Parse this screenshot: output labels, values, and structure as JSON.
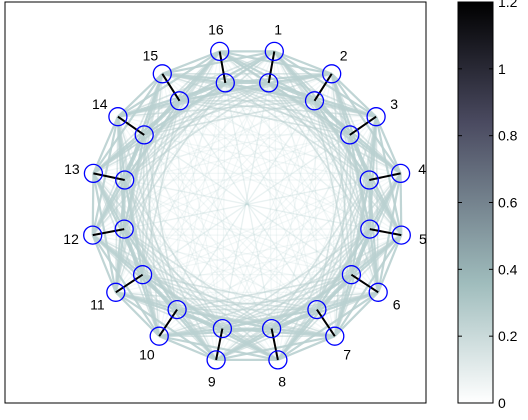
{
  "graph": {
    "nodes": [
      {
        "id": 1,
        "label": "1"
      },
      {
        "id": 2,
        "label": "2"
      },
      {
        "id": 3,
        "label": "3"
      },
      {
        "id": 4,
        "label": "4"
      },
      {
        "id": 5,
        "label": "5"
      },
      {
        "id": 6,
        "label": "6"
      },
      {
        "id": 7,
        "label": "7"
      },
      {
        "id": 8,
        "label": "8"
      },
      {
        "id": 9,
        "label": "9"
      },
      {
        "id": 10,
        "label": "10"
      },
      {
        "id": 11,
        "label": "11"
      },
      {
        "id": 12,
        "label": "12"
      },
      {
        "id": 13,
        "label": "13"
      },
      {
        "id": 14,
        "label": "14"
      },
      {
        "id": 15,
        "label": "15"
      },
      {
        "id": 16,
        "label": "16"
      }
    ],
    "node_color": "#0000ff",
    "spoke_color": "#000000",
    "edge_color": "#b9d0d0"
  },
  "colorbar": {
    "ticks": [
      "0",
      "0.2",
      "0.4",
      "0.6",
      "0.8",
      "1",
      "1.2"
    ],
    "tick_values": [
      0,
      0.2,
      0.4,
      0.6,
      0.8,
      1.0,
      1.2
    ],
    "range": [
      0,
      1.2
    ],
    "colors": [
      "#ffffff",
      "#9fbcbc",
      "#4a4a60",
      "#000000"
    ]
  }
}
